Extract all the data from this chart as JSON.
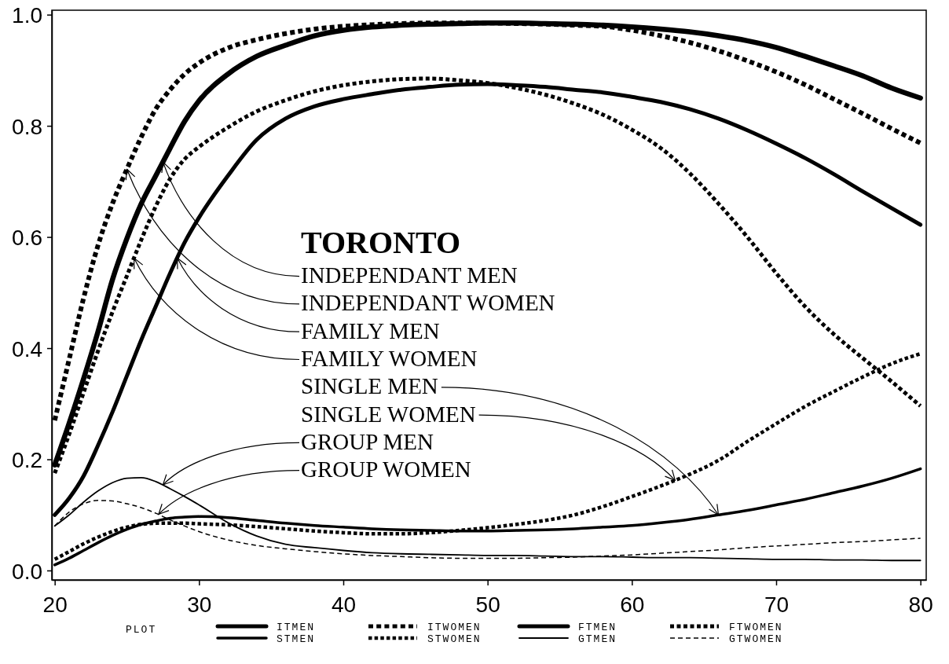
{
  "chart_data": {
    "type": "line",
    "title": "TORONTO",
    "x": [
      20,
      21,
      22,
      23,
      24,
      25,
      26,
      27,
      28,
      29,
      30,
      32,
      34,
      36,
      38,
      40,
      42,
      44,
      46,
      48,
      50,
      52,
      54,
      56,
      58,
      60,
      62,
      64,
      66,
      68,
      70,
      72,
      74,
      76,
      78,
      80
    ],
    "series": [
      {
        "name": "ITMEN",
        "color": "#000000",
        "line_style": "solid",
        "values": [
          0.19,
          0.265,
          0.345,
          0.43,
          0.523,
          0.597,
          0.66,
          0.71,
          0.76,
          0.808,
          0.845,
          0.893,
          0.925,
          0.945,
          0.962,
          0.972,
          0.978,
          0.981,
          0.983,
          0.984,
          0.985,
          0.985,
          0.984,
          0.983,
          0.981,
          0.978,
          0.974,
          0.969,
          0.962,
          0.953,
          0.941,
          0.925,
          0.908,
          0.89,
          0.868,
          0.85
        ]
      },
      {
        "name": "STMEN",
        "color": "#000000",
        "line_style": "solid",
        "values": [
          0.01,
          0.022,
          0.036,
          0.05,
          0.063,
          0.074,
          0.083,
          0.089,
          0.094,
          0.096,
          0.097,
          0.095,
          0.09,
          0.085,
          0.081,
          0.078,
          0.075,
          0.073,
          0.072,
          0.071,
          0.071,
          0.072,
          0.073,
          0.075,
          0.078,
          0.081,
          0.086,
          0.092,
          0.1,
          0.108,
          0.118,
          0.128,
          0.14,
          0.152,
          0.166,
          0.183
        ]
      },
      {
        "name": "ITWOMEN",
        "color": "#000000",
        "line_style": "dotted",
        "values": [
          0.27,
          0.38,
          0.49,
          0.585,
          0.66,
          0.722,
          0.78,
          0.83,
          0.865,
          0.893,
          0.913,
          0.94,
          0.955,
          0.966,
          0.974,
          0.979,
          0.982,
          0.984,
          0.985,
          0.985,
          0.985,
          0.984,
          0.983,
          0.981,
          0.979,
          0.972,
          0.962,
          0.95,
          0.935,
          0.917,
          0.897,
          0.874,
          0.848,
          0.822,
          0.795,
          0.769
        ]
      },
      {
        "name": "STWOMEN",
        "color": "#000000",
        "line_style": "dotted",
        "values": [
          0.02,
          0.034,
          0.048,
          0.06,
          0.07,
          0.078,
          0.083,
          0.085,
          0.085,
          0.085,
          0.084,
          0.082,
          0.079,
          0.075,
          0.071,
          0.068,
          0.066,
          0.066,
          0.068,
          0.072,
          0.077,
          0.083,
          0.09,
          0.1,
          0.115,
          0.133,
          0.152,
          0.173,
          0.198,
          0.232,
          0.264,
          0.295,
          0.322,
          0.348,
          0.372,
          0.39
        ]
      },
      {
        "name": "FTMEN",
        "color": "#000000",
        "line_style": "solid",
        "values": [
          0.1,
          0.13,
          0.17,
          0.225,
          0.285,
          0.35,
          0.415,
          0.475,
          0.535,
          0.59,
          0.635,
          0.71,
          0.775,
          0.813,
          0.835,
          0.848,
          0.857,
          0.865,
          0.87,
          0.874,
          0.875,
          0.873,
          0.87,
          0.865,
          0.86,
          0.852,
          0.843,
          0.83,
          0.813,
          0.792,
          0.768,
          0.742,
          0.713,
          0.682,
          0.652,
          0.622
        ]
      },
      {
        "name": "GTMEN",
        "color": "#000000",
        "line_style": "solid",
        "values": [
          0.08,
          0.1,
          0.123,
          0.143,
          0.158,
          0.166,
          0.167,
          0.16,
          0.147,
          0.133,
          0.118,
          0.086,
          0.062,
          0.047,
          0.041,
          0.036,
          0.032,
          0.03,
          0.029,
          0.028,
          0.027,
          0.027,
          0.026,
          0.025,
          0.025,
          0.024,
          0.023,
          0.023,
          0.022,
          0.021,
          0.02,
          0.02,
          0.019,
          0.019,
          0.018,
          0.018
        ]
      },
      {
        "name": "FTWOMEN",
        "color": "#000000",
        "line_style": "dotted",
        "values": [
          0.175,
          0.245,
          0.32,
          0.395,
          0.465,
          0.53,
          0.595,
          0.655,
          0.705,
          0.74,
          0.762,
          0.797,
          0.826,
          0.846,
          0.862,
          0.873,
          0.88,
          0.884,
          0.885,
          0.882,
          0.877,
          0.868,
          0.856,
          0.84,
          0.82,
          0.793,
          0.76,
          0.715,
          0.66,
          0.6,
          0.535,
          0.475,
          0.425,
          0.382,
          0.34,
          0.296
        ]
      },
      {
        "name": "GTWOMEN",
        "color": "#000000",
        "line_style": "dashed",
        "values": [
          0.08,
          0.105,
          0.12,
          0.126,
          0.125,
          0.12,
          0.113,
          0.103,
          0.091,
          0.08,
          0.07,
          0.055,
          0.045,
          0.039,
          0.034,
          0.03,
          0.027,
          0.025,
          0.023,
          0.022,
          0.022,
          0.022,
          0.023,
          0.024,
          0.026,
          0.028,
          0.031,
          0.034,
          0.037,
          0.041,
          0.044,
          0.047,
          0.05,
          0.052,
          0.055,
          0.058
        ]
      }
    ],
    "xlim": [
      19.8,
      80.4
    ],
    "ylim": [
      -0.017,
      1.008
    ],
    "xticks": [
      20,
      30,
      40,
      50,
      60,
      70,
      80
    ],
    "yticks": [
      {
        "value": 0,
        "label": "0.0"
      },
      0.2,
      0.4,
      0.6,
      0.8,
      {
        "value": 1,
        "label": "1.0"
      }
    ],
    "legend": "bottom",
    "legend_title": "PLOT",
    "annotations": [
      {
        "text": "INDEPENDANT MEN",
        "x": 27.5,
        "y": 0.735
      },
      {
        "text": "INDEPENDANT WOMEN",
        "x": 25,
        "y": 0.722
      },
      {
        "text": "FAMILY MEN",
        "x": 28.5,
        "y": 0.562
      },
      {
        "text": "FAMILY WOMEN",
        "x": 25.5,
        "y": 0.562
      },
      {
        "text": "SINGLE MEN",
        "x": 66,
        "y": 0.1
      },
      {
        "text": "SINGLE WOMEN",
        "x": 63,
        "y": 0.162
      },
      {
        "text": "GROUP MEN",
        "x": 27.5,
        "y": 0.154
      },
      {
        "text": "GROUP WOMEN",
        "x": 27.2,
        "y": 0.101
      }
    ]
  }
}
